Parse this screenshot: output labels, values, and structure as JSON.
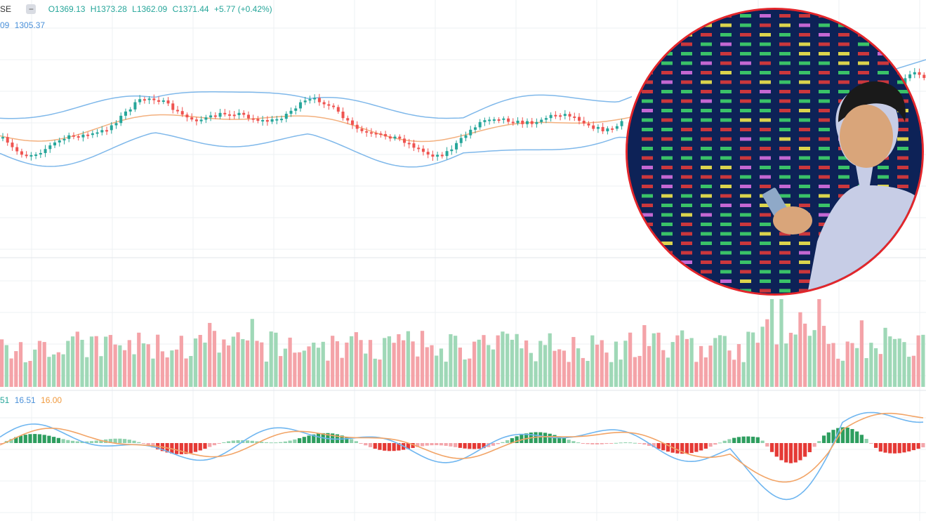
{
  "header": {
    "symbol_fragment": "SE",
    "ohlc": {
      "open": "O1369.13",
      "high": "H1373.28",
      "low": "L1362.09",
      "close": "C1371.44",
      "change": "+5.77 (+0.42%)"
    },
    "bb_fragment": "09",
    "bb_value": "1305.37"
  },
  "macd_header": {
    "fragment": "51",
    "macd": "16.51",
    "signal": "16.00"
  },
  "colors": {
    "up": "#26a69a",
    "down": "#ef5350",
    "up_vol": "#9fd8b7",
    "down_vol": "#f4a3a8",
    "bb": "#7fb8ea",
    "ma": "#f3b07e",
    "macd": "#6fb6f0",
    "signal": "#f2a466",
    "inset_border": "#e3262b"
  },
  "inset": {
    "description_icon": "stock-board-trader-photo-icon"
  },
  "chart_data": [
    {
      "type": "candlestick",
      "title": "",
      "close": [
        1371.44
      ],
      "open": [
        1369.13
      ],
      "high": [
        1373.28
      ],
      "low": [
        1362.09
      ],
      "change": 5.77,
      "change_pct": 0.42,
      "bollinger_mid": 1305.37,
      "grid": true
    },
    {
      "type": "bar",
      "title": "Volume",
      "grid": true
    },
    {
      "type": "line",
      "title": "MACD",
      "series": [
        {
          "name": "MACD",
          "last": 16.51
        },
        {
          "name": "Signal",
          "last": 16.0
        }
      ],
      "grid": true
    }
  ]
}
